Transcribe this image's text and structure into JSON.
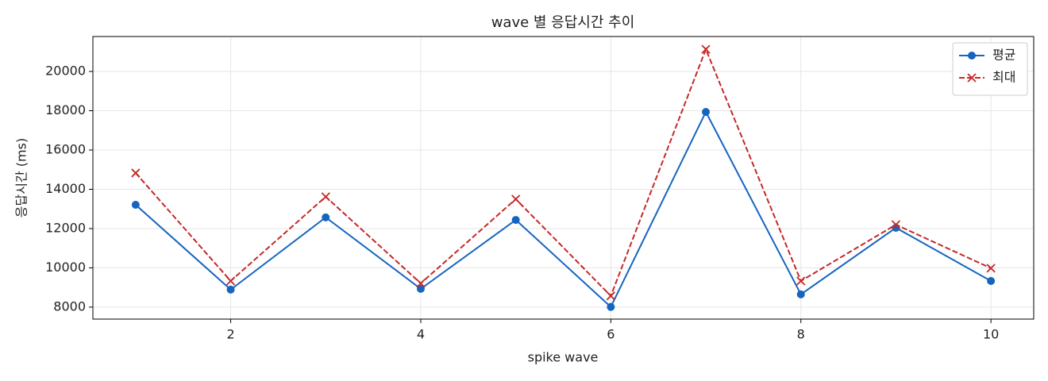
{
  "chart_data": {
    "type": "line",
    "title": "wave 별 응답시간 추이",
    "x_label": "spike wave",
    "y_label": "응답시간 (ms)",
    "x": [
      1,
      2,
      3,
      4,
      5,
      6,
      7,
      8,
      9,
      10
    ],
    "series": [
      {
        "name": "평균",
        "color": "#1565c0",
        "linestyle": "solid",
        "marker": "circle",
        "values": [
          13210,
          8890,
          12570,
          8930,
          12440,
          8010,
          17940,
          8650,
          12040,
          9330
        ]
      },
      {
        "name": "최대",
        "color": "#c62828",
        "linestyle": "dashed",
        "marker": "x",
        "values": [
          14830,
          9330,
          13620,
          9210,
          13500,
          8570,
          21130,
          9330,
          12200,
          9980
        ]
      }
    ],
    "xlim": [
      0.55,
      10.45
    ],
    "xticks": [
      2,
      4,
      6,
      8,
      10
    ],
    "ylim": [
      7390,
      21780
    ],
    "yticks": [
      8000,
      10000,
      12000,
      14000,
      16000,
      18000,
      20000
    ],
    "grid": true,
    "legend": "upper right"
  }
}
